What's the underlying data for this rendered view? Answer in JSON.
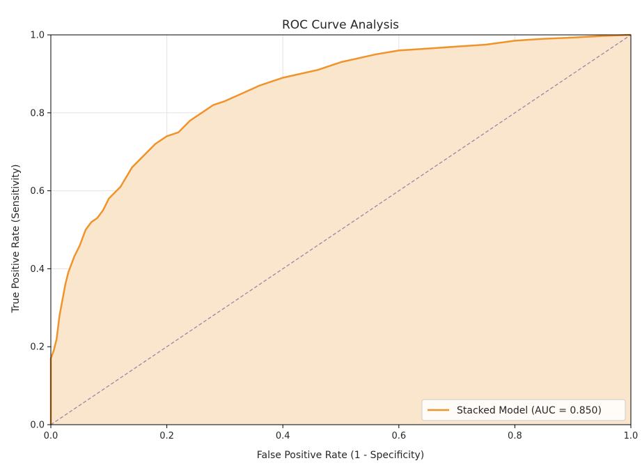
{
  "chart_data": {
    "type": "line",
    "title": "ROC Curve Analysis",
    "xlabel": "False Positive Rate (1 - Specificity)",
    "ylabel": "True Positive Rate (Sensitivity)",
    "xlim": [
      0.0,
      1.0
    ],
    "ylim": [
      0.0,
      1.0
    ],
    "xticks": [
      "0.0",
      "0.2",
      "0.4",
      "0.6",
      "0.8",
      "1.0"
    ],
    "yticks": [
      "0.0",
      "0.2",
      "0.4",
      "0.6",
      "0.8",
      "1.0"
    ],
    "grid": true,
    "legend_position": "lower-right",
    "series": [
      {
        "name": "Stacked Model (AUC = 0.850)",
        "color": "#f0932b",
        "fill_color": "#fae6cd",
        "x": [
          0.0,
          0.0,
          0.005,
          0.01,
          0.015,
          0.02,
          0.025,
          0.03,
          0.04,
          0.05,
          0.06,
          0.07,
          0.08,
          0.09,
          0.1,
          0.12,
          0.14,
          0.16,
          0.18,
          0.2,
          0.22,
          0.24,
          0.26,
          0.28,
          0.3,
          0.33,
          0.36,
          0.4,
          0.43,
          0.46,
          0.5,
          0.53,
          0.56,
          0.6,
          0.65,
          0.7,
          0.75,
          0.8,
          0.85,
          0.9,
          0.95,
          1.0
        ],
        "y": [
          0.0,
          0.17,
          0.19,
          0.22,
          0.28,
          0.32,
          0.36,
          0.39,
          0.43,
          0.46,
          0.5,
          0.52,
          0.53,
          0.55,
          0.58,
          0.61,
          0.66,
          0.69,
          0.72,
          0.74,
          0.75,
          0.78,
          0.8,
          0.82,
          0.83,
          0.85,
          0.87,
          0.89,
          0.9,
          0.91,
          0.93,
          0.94,
          0.95,
          0.96,
          0.965,
          0.97,
          0.975,
          0.985,
          0.99,
          0.993,
          0.997,
          1.0
        ]
      },
      {
        "name": "",
        "style": "dashed",
        "color": "#9b84a8",
        "x": [
          0.0,
          1.0
        ],
        "y": [
          0.0,
          1.0
        ]
      }
    ]
  }
}
